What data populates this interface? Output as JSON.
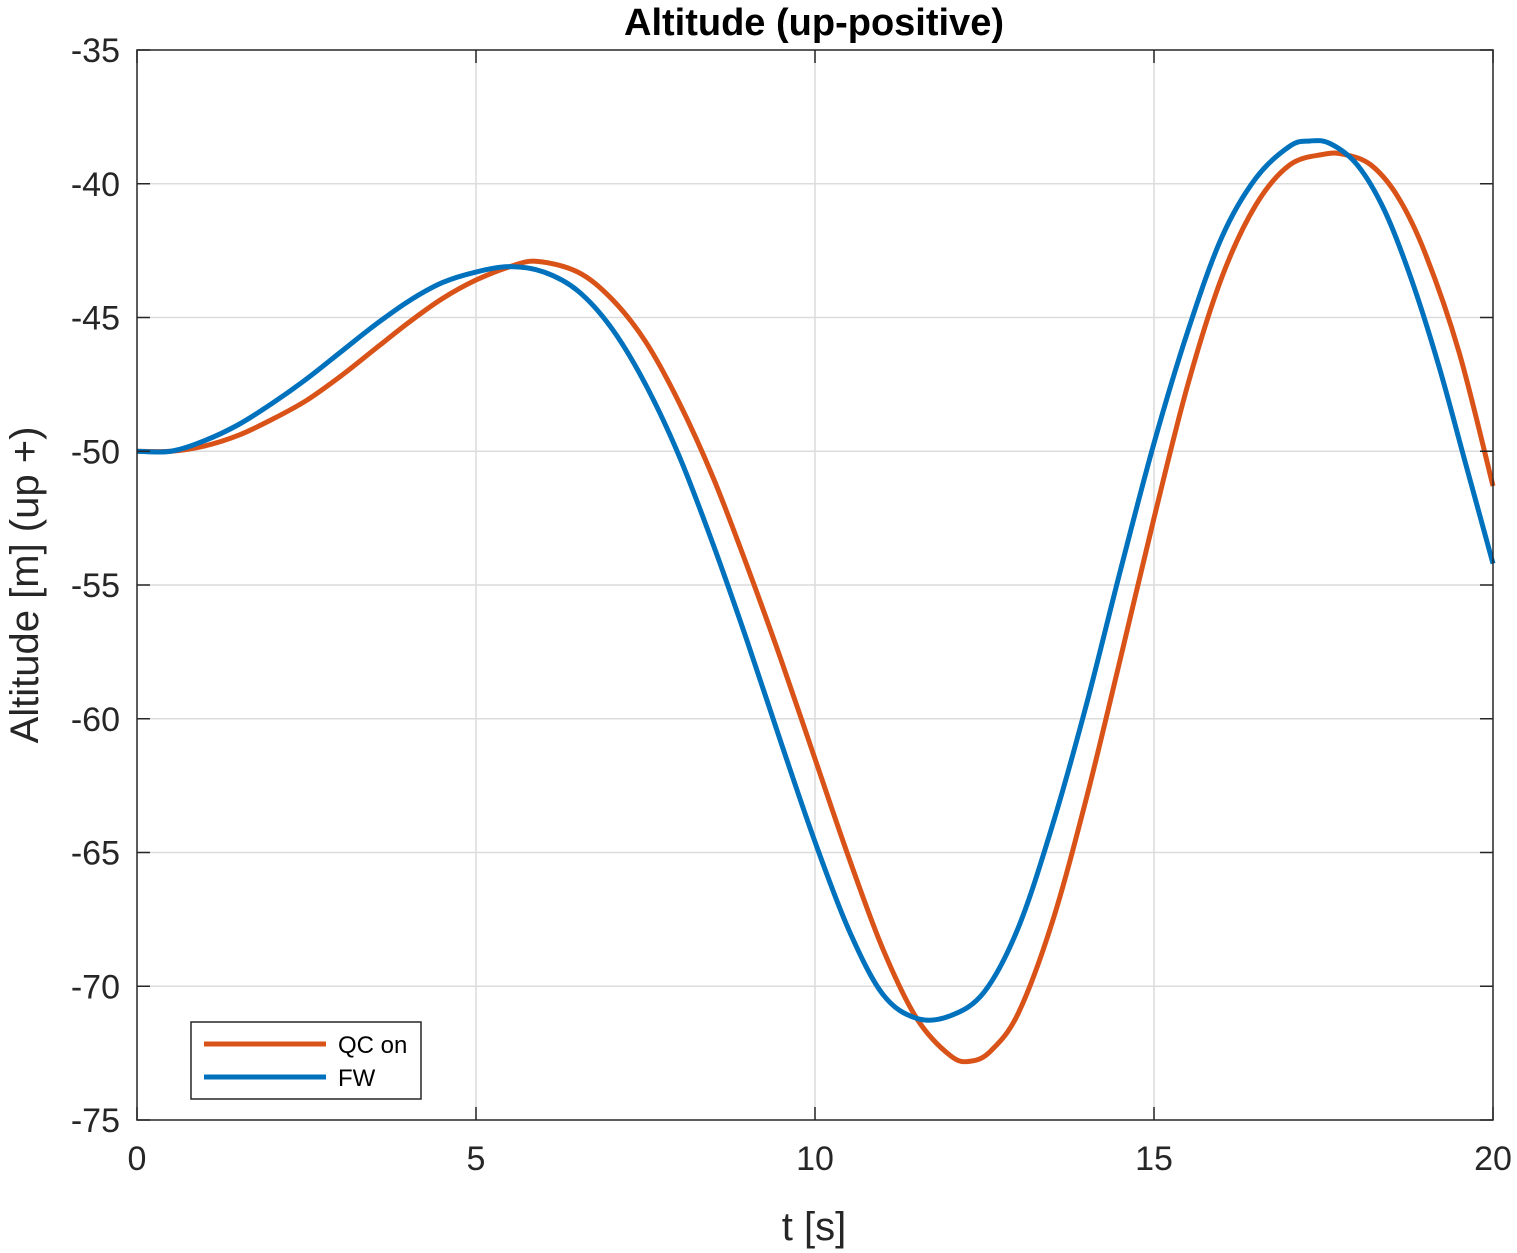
{
  "chart_data": {
    "type": "line",
    "title": "Altitude (up-positive)",
    "xlabel": "t [s]",
    "ylabel": "Altitude [m] (up +)",
    "xlim": [
      0,
      20
    ],
    "ylim": [
      -75,
      -35
    ],
    "xticks": [
      0,
      5,
      10,
      15,
      20
    ],
    "yticks": [
      -35,
      -40,
      -45,
      -50,
      -55,
      -60,
      -65,
      -70,
      -75
    ],
    "grid": true,
    "legend_position": "bottom-left",
    "series": [
      {
        "name": "QC on",
        "color": "#D95319",
        "x": [
          0,
          0.5,
          1,
          1.5,
          2,
          2.5,
          3,
          3.5,
          4,
          4.5,
          5,
          5.5,
          5.9,
          6.5,
          7,
          7.5,
          8,
          8.5,
          9,
          9.5,
          10,
          10.5,
          11,
          11.5,
          12,
          12.3,
          12.6,
          13,
          13.5,
          14,
          14.5,
          15,
          15.5,
          16,
          16.5,
          17,
          17.5,
          17.8,
          18.2,
          18.6,
          19,
          19.5,
          20
        ],
        "values": [
          -50,
          -50.0,
          -49.8,
          -49.4,
          -48.8,
          -48.1,
          -47.2,
          -46.2,
          -45.2,
          -44.3,
          -43.6,
          -43.1,
          -42.9,
          -43.3,
          -44.3,
          -45.9,
          -48.2,
          -51.0,
          -54.3,
          -57.8,
          -61.5,
          -65.2,
          -68.6,
          -71.2,
          -72.6,
          -72.8,
          -72.4,
          -71.0,
          -67.6,
          -63.0,
          -57.8,
          -52.5,
          -47.5,
          -43.5,
          -40.8,
          -39.3,
          -38.9,
          -38.9,
          -39.3,
          -40.5,
          -42.6,
          -46.3,
          -51.3
        ]
      },
      {
        "name": "FW",
        "color": "#0072BD",
        "x": [
          0,
          0.5,
          1,
          1.5,
          2,
          2.5,
          3,
          3.5,
          4,
          4.5,
          5,
          5.5,
          6,
          6.5,
          7,
          7.5,
          8,
          8.5,
          9,
          9.5,
          10,
          10.5,
          11,
          11.5,
          12,
          12.5,
          13,
          13.5,
          14,
          14.5,
          15,
          15.5,
          16,
          16.5,
          17,
          17.3,
          17.6,
          18,
          18.4,
          18.8,
          19.2,
          19.6,
          20
        ],
        "values": [
          -50,
          -50.0,
          -49.6,
          -49.0,
          -48.2,
          -47.3,
          -46.3,
          -45.3,
          -44.4,
          -43.7,
          -43.3,
          -43.1,
          -43.3,
          -44.0,
          -45.4,
          -47.5,
          -50.2,
          -53.5,
          -57.1,
          -60.9,
          -64.6,
          -67.9,
          -70.3,
          -71.2,
          -71.1,
          -70.2,
          -67.8,
          -64.0,
          -59.5,
          -54.5,
          -49.7,
          -45.5,
          -42.0,
          -39.8,
          -38.6,
          -38.4,
          -38.5,
          -39.3,
          -41.0,
          -43.6,
          -46.8,
          -50.5,
          -54.2
        ]
      }
    ]
  }
}
